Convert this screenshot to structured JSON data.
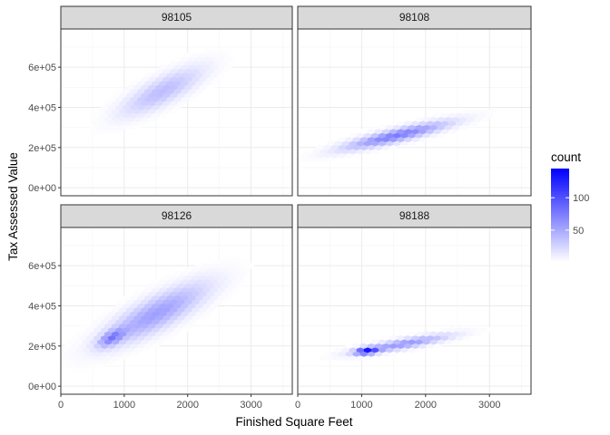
{
  "chart_data": {
    "type": "heatmap",
    "geom": "hexbin",
    "facet_variable": "ZipCode",
    "facets": [
      "98105",
      "98108",
      "98126",
      "98188"
    ],
    "xlabel": "Finished Square Feet",
    "ylabel": "Tax Assessed Value",
    "xlim": [
      0,
      3650
    ],
    "ylim": [
      -40000,
      790000
    ],
    "x_ticks": [
      0,
      1000,
      2000,
      3000
    ],
    "x_tick_labels": [
      "0",
      "1000",
      "2000",
      "3000"
    ],
    "y_ticks": [
      0,
      200000,
      400000,
      600000
    ],
    "y_tick_labels": [
      "0e+00",
      "2e+05",
      "4e+05",
      "6e+05"
    ],
    "grid": true,
    "legend": {
      "title": "count",
      "position": "right",
      "low_color": "#ffffff",
      "high_color": "#0000ff",
      "range": [
        1,
        145
      ],
      "ticks": [
        50,
        100
      ],
      "tick_labels": [
        "50",
        "100"
      ]
    },
    "panels": [
      {
        "zip": "98105",
        "clusters": [
          {
            "x": 1600,
            "y": 480000,
            "sx": 450,
            "sy": 85000,
            "rho": 0.8,
            "peak": 38,
            "cutoff": 2.6
          }
        ]
      },
      {
        "zip": "98108",
        "clusters": [
          {
            "x": 1550,
            "y": 260000,
            "sx": 560,
            "sy": 47000,
            "rho": 0.88,
            "peak": 75,
            "cutoff": 2.8
          }
        ]
      },
      {
        "zip": "98126",
        "clusters": [
          {
            "x": 1500,
            "y": 360000,
            "sx": 560,
            "sy": 105000,
            "rho": 0.82,
            "peak": 55,
            "cutoff": 2.7
          },
          {
            "x": 800,
            "y": 240000,
            "sx": 140,
            "sy": 30000,
            "rho": 0.6,
            "peak": 55,
            "cutoff": 2.0
          }
        ]
      },
      {
        "zip": "98188",
        "clusters": [
          {
            "x": 1650,
            "y": 210000,
            "sx": 500,
            "sy": 32000,
            "rho": 0.85,
            "peak": 60,
            "cutoff": 2.9
          },
          {
            "x": 1080,
            "y": 175000,
            "sx": 120,
            "sy": 12000,
            "rho": 0.3,
            "peak": 110,
            "cutoff": 2.0
          }
        ]
      }
    ]
  }
}
